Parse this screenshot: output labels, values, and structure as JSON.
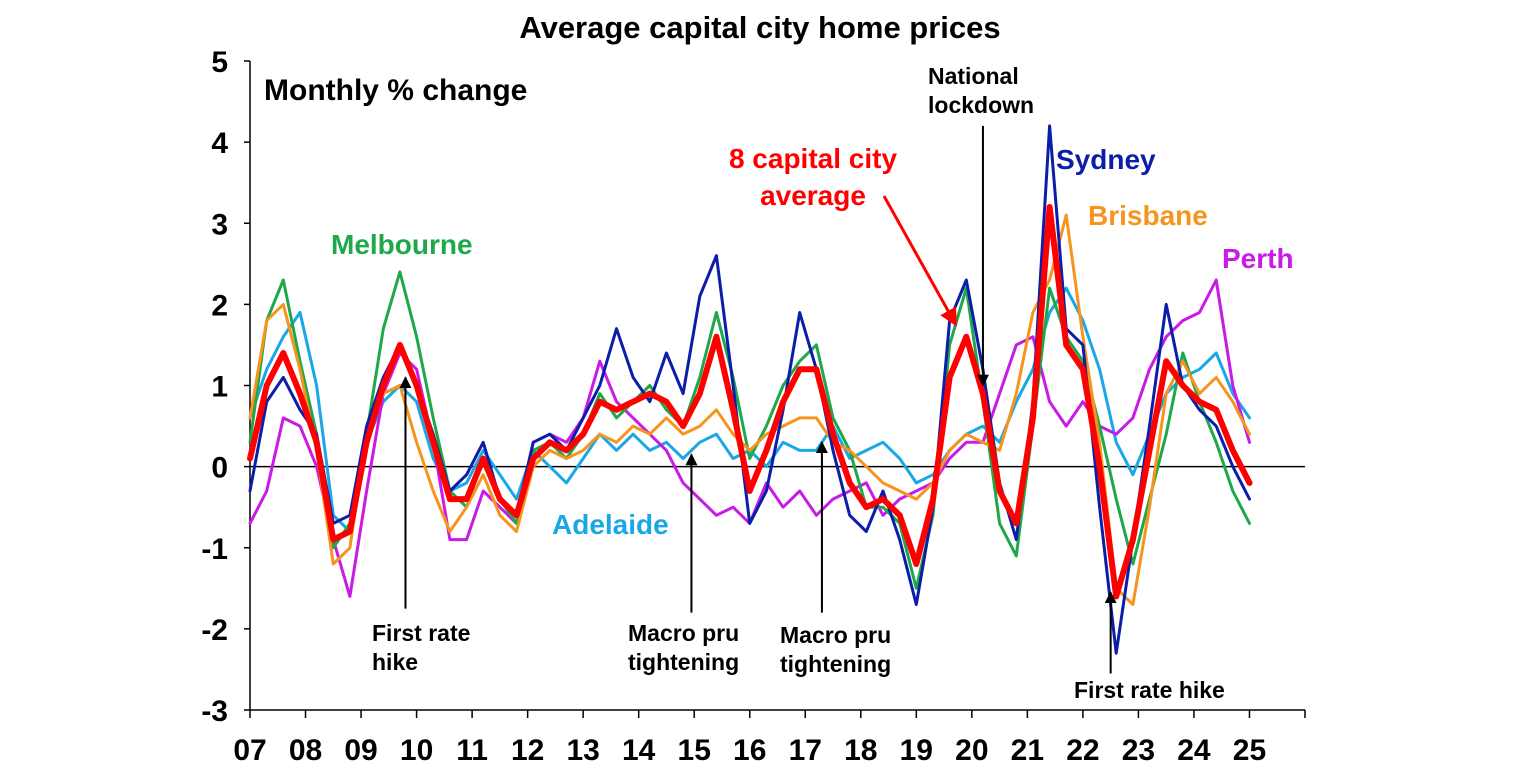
{
  "chart_data": {
    "type": "line",
    "title": "Average capital city home prices",
    "subtitle": "Monthly % change",
    "xlabel": "",
    "ylabel": "",
    "ylim": [
      -3,
      5
    ],
    "xlim": [
      2007,
      2026
    ],
    "yticks": [
      "5",
      "4",
      "3",
      "2",
      "1",
      "0",
      "-1",
      "-2",
      "-3"
    ],
    "ytick_values": [
      5,
      4,
      3,
      2,
      1,
      0,
      -1,
      -2,
      -3
    ],
    "xticks": [
      "07",
      "08",
      "09",
      "10",
      "11",
      "12",
      "13",
      "14",
      "15",
      "16",
      "17",
      "18",
      "19",
      "20",
      "21",
      "22",
      "23",
      "24",
      "25"
    ],
    "xtick_values": [
      2007,
      2008,
      2009,
      2010,
      2011,
      2012,
      2013,
      2014,
      2015,
      2016,
      2017,
      2018,
      2019,
      2020,
      2021,
      2022,
      2023,
      2024,
      2025
    ],
    "grid": false,
    "series": [
      {
        "name": "Adelaide",
        "color": "#1aa7e6",
        "width": 3,
        "x": [
          2007.0,
          2007.3,
          2007.6,
          2007.9,
          2008.2,
          2008.5,
          2008.8,
          2009.1,
          2009.4,
          2009.7,
          2010.0,
          2010.3,
          2010.6,
          2010.9,
          2011.2,
          2011.5,
          2011.8,
          2012.1,
          2012.4,
          2012.7,
          2013.0,
          2013.3,
          2013.6,
          2013.9,
          2014.2,
          2014.5,
          2014.8,
          2015.1,
          2015.4,
          2015.7,
          2016.0,
          2016.3,
          2016.6,
          2016.9,
          2017.2,
          2017.5,
          2017.8,
          2018.1,
          2018.4,
          2018.7,
          2019.0,
          2019.3,
          2019.6,
          2019.9,
          2020.2,
          2020.5,
          2020.8,
          2021.1,
          2021.4,
          2021.7,
          2022.0,
          2022.3,
          2022.6,
          2022.9,
          2023.2,
          2023.5,
          2023.8,
          2024.1,
          2024.4,
          2024.7,
          2025.0
        ],
        "y": [
          0.6,
          1.2,
          1.6,
          1.9,
          1.0,
          -0.6,
          -0.8,
          0.3,
          0.8,
          1.0,
          0.8,
          0.1,
          -0.3,
          -0.2,
          0.2,
          -0.1,
          -0.4,
          0.2,
          0.0,
          -0.2,
          0.1,
          0.4,
          0.2,
          0.4,
          0.2,
          0.3,
          0.1,
          0.3,
          0.4,
          0.1,
          0.2,
          0.0,
          0.3,
          0.2,
          0.2,
          0.5,
          0.1,
          0.2,
          0.3,
          0.1,
          -0.2,
          -0.1,
          0.2,
          0.4,
          0.5,
          0.3,
          0.8,
          1.2,
          1.9,
          2.2,
          1.8,
          1.2,
          0.3,
          -0.1,
          0.4,
          0.9,
          1.1,
          1.2,
          1.4,
          0.9,
          0.6
        ]
      },
      {
        "name": "Perth",
        "color": "#c91ae6",
        "width": 3,
        "x": [
          2007.0,
          2007.3,
          2007.6,
          2007.9,
          2008.2,
          2008.5,
          2008.8,
          2009.1,
          2009.4,
          2009.7,
          2010.0,
          2010.3,
          2010.6,
          2010.9,
          2011.2,
          2011.5,
          2011.8,
          2012.1,
          2012.4,
          2012.7,
          2013.0,
          2013.3,
          2013.6,
          2013.9,
          2014.2,
          2014.5,
          2014.8,
          2015.1,
          2015.4,
          2015.7,
          2016.0,
          2016.3,
          2016.6,
          2016.9,
          2017.2,
          2017.5,
          2017.8,
          2018.1,
          2018.4,
          2018.7,
          2019.0,
          2019.3,
          2019.6,
          2019.9,
          2020.2,
          2020.5,
          2020.8,
          2021.1,
          2021.4,
          2021.7,
          2022.0,
          2022.3,
          2022.6,
          2022.9,
          2023.2,
          2023.5,
          2023.8,
          2024.1,
          2024.4,
          2024.7,
          2025.0
        ],
        "y": [
          -0.7,
          -0.3,
          0.6,
          0.5,
          0.0,
          -0.9,
          -1.6,
          -0.3,
          0.9,
          1.4,
          1.2,
          0.3,
          -0.9,
          -0.9,
          -0.3,
          -0.5,
          -0.7,
          0.3,
          0.4,
          0.3,
          0.6,
          1.3,
          0.8,
          0.6,
          0.4,
          0.2,
          -0.2,
          -0.4,
          -0.6,
          -0.5,
          -0.7,
          -0.2,
          -0.5,
          -0.3,
          -0.6,
          -0.4,
          -0.3,
          -0.2,
          -0.6,
          -0.4,
          -0.3,
          -0.2,
          0.1,
          0.3,
          0.3,
          0.9,
          1.5,
          1.6,
          0.8,
          0.5,
          0.8,
          0.5,
          0.4,
          0.6,
          1.2,
          1.6,
          1.8,
          1.9,
          2.3,
          1.0,
          0.3
        ]
      },
      {
        "name": "Melbourne",
        "color": "#1fa84a",
        "width": 3,
        "x": [
          2007.0,
          2007.3,
          2007.6,
          2007.9,
          2008.2,
          2008.5,
          2008.8,
          2009.1,
          2009.4,
          2009.7,
          2010.0,
          2010.3,
          2010.6,
          2010.9,
          2011.2,
          2011.5,
          2011.8,
          2012.1,
          2012.4,
          2012.7,
          2013.0,
          2013.3,
          2013.6,
          2013.9,
          2014.2,
          2014.5,
          2014.8,
          2015.1,
          2015.4,
          2015.7,
          2016.0,
          2016.3,
          2016.6,
          2016.9,
          2017.2,
          2017.5,
          2017.8,
          2018.1,
          2018.4,
          2018.7,
          2019.0,
          2019.3,
          2019.6,
          2019.9,
          2020.2,
          2020.5,
          2020.8,
          2021.1,
          2021.4,
          2021.7,
          2022.0,
          2022.3,
          2022.6,
          2022.9,
          2023.2,
          2023.5,
          2023.8,
          2024.1,
          2024.4,
          2024.7,
          2025.0
        ],
        "y": [
          0.3,
          1.8,
          2.3,
          1.3,
          0.4,
          -1.0,
          -0.7,
          0.4,
          1.7,
          2.4,
          1.6,
          0.6,
          -0.3,
          -0.5,
          0.1,
          -0.4,
          -0.7,
          0.2,
          0.3,
          0.1,
          0.4,
          0.9,
          0.6,
          0.8,
          1.0,
          0.7,
          0.5,
          1.1,
          1.9,
          1.1,
          0.1,
          0.5,
          1.0,
          1.3,
          1.5,
          0.6,
          0.2,
          -0.5,
          -0.5,
          -0.7,
          -1.5,
          -0.6,
          1.5,
          2.2,
          0.8,
          -0.7,
          -1.1,
          0.5,
          2.2,
          1.6,
          1.3,
          0.5,
          -0.4,
          -1.2,
          -0.4,
          0.4,
          1.4,
          0.8,
          0.3,
          -0.3,
          -0.7
        ]
      },
      {
        "name": "Brisbane",
        "color": "#f7941d",
        "width": 3,
        "x": [
          2007.0,
          2007.3,
          2007.6,
          2007.9,
          2008.2,
          2008.5,
          2008.8,
          2009.1,
          2009.4,
          2009.7,
          2010.0,
          2010.3,
          2010.6,
          2010.9,
          2011.2,
          2011.5,
          2011.8,
          2012.1,
          2012.4,
          2012.7,
          2013.0,
          2013.3,
          2013.6,
          2013.9,
          2014.2,
          2014.5,
          2014.8,
          2015.1,
          2015.4,
          2015.7,
          2016.0,
          2016.3,
          2016.6,
          2016.9,
          2017.2,
          2017.5,
          2017.8,
          2018.1,
          2018.4,
          2018.7,
          2019.0,
          2019.3,
          2019.6,
          2019.9,
          2020.2,
          2020.5,
          2020.8,
          2021.1,
          2021.4,
          2021.7,
          2022.0,
          2022.3,
          2022.6,
          2022.9,
          2023.2,
          2023.5,
          2023.8,
          2024.1,
          2024.4,
          2024.7,
          2025.0
        ],
        "y": [
          0.6,
          1.8,
          2.0,
          1.2,
          0.2,
          -1.2,
          -1.0,
          0.4,
          0.9,
          1.0,
          0.3,
          -0.3,
          -0.8,
          -0.5,
          -0.1,
          -0.6,
          -0.8,
          0.0,
          0.2,
          0.1,
          0.2,
          0.4,
          0.3,
          0.5,
          0.4,
          0.6,
          0.4,
          0.5,
          0.7,
          0.4,
          0.2,
          0.4,
          0.5,
          0.6,
          0.6,
          0.3,
          0.2,
          0.0,
          -0.2,
          -0.3,
          -0.4,
          -0.2,
          0.2,
          0.4,
          0.3,
          0.2,
          0.9,
          1.9,
          2.3,
          3.1,
          1.6,
          0.3,
          -1.5,
          -1.7,
          -0.5,
          0.9,
          1.3,
          0.9,
          1.1,
          0.8,
          0.4
        ]
      },
      {
        "name": "Sydney",
        "color": "#0b1ea8",
        "width": 3,
        "x": [
          2007.0,
          2007.3,
          2007.6,
          2007.9,
          2008.2,
          2008.5,
          2008.8,
          2009.1,
          2009.4,
          2009.7,
          2010.0,
          2010.3,
          2010.6,
          2010.9,
          2011.2,
          2011.5,
          2011.8,
          2012.1,
          2012.4,
          2012.7,
          2013.0,
          2013.3,
          2013.6,
          2013.9,
          2014.2,
          2014.5,
          2014.8,
          2015.1,
          2015.4,
          2015.7,
          2016.0,
          2016.3,
          2016.6,
          2016.9,
          2017.2,
          2017.5,
          2017.8,
          2018.1,
          2018.4,
          2018.7,
          2019.0,
          2019.3,
          2019.6,
          2019.9,
          2020.2,
          2020.5,
          2020.8,
          2021.1,
          2021.4,
          2021.7,
          2022.0,
          2022.3,
          2022.6,
          2022.9,
          2023.2,
          2023.5,
          2023.8,
          2024.1,
          2024.4,
          2024.7,
          2025.0
        ],
        "y": [
          -0.3,
          0.8,
          1.1,
          0.7,
          0.4,
          -0.7,
          -0.6,
          0.5,
          1.1,
          1.5,
          1.0,
          0.4,
          -0.3,
          -0.1,
          0.3,
          -0.4,
          -0.6,
          0.3,
          0.4,
          0.2,
          0.6,
          1.0,
          1.7,
          1.1,
          0.8,
          1.4,
          0.9,
          2.1,
          2.6,
          1.0,
          -0.7,
          -0.3,
          0.7,
          1.9,
          1.2,
          0.2,
          -0.6,
          -0.8,
          -0.3,
          -0.9,
          -1.7,
          -0.5,
          1.8,
          2.3,
          1.2,
          -0.2,
          -0.9,
          0.8,
          4.2,
          1.7,
          1.5,
          -0.5,
          -2.3,
          -0.9,
          0.5,
          2.0,
          1.0,
          0.7,
          0.5,
          0.0,
          -0.4
        ]
      },
      {
        "name": "8 capital city average",
        "color": "#ff0000",
        "width": 6,
        "x": [
          2007.0,
          2007.3,
          2007.6,
          2007.9,
          2008.2,
          2008.5,
          2008.8,
          2009.1,
          2009.4,
          2009.7,
          2010.0,
          2010.3,
          2010.6,
          2010.9,
          2011.2,
          2011.5,
          2011.8,
          2012.1,
          2012.4,
          2012.7,
          2013.0,
          2013.3,
          2013.6,
          2013.9,
          2014.2,
          2014.5,
          2014.8,
          2015.1,
          2015.4,
          2015.7,
          2016.0,
          2016.3,
          2016.6,
          2016.9,
          2017.2,
          2017.5,
          2017.8,
          2018.1,
          2018.4,
          2018.7,
          2019.0,
          2019.3,
          2019.6,
          2019.9,
          2020.2,
          2020.5,
          2020.8,
          2021.1,
          2021.4,
          2021.7,
          2022.0,
          2022.3,
          2022.6,
          2022.9,
          2023.2,
          2023.5,
          2023.8,
          2024.1,
          2024.4,
          2024.7,
          2025.0
        ],
        "y": [
          0.1,
          1.0,
          1.4,
          0.9,
          0.3,
          -0.9,
          -0.8,
          0.3,
          1.0,
          1.5,
          1.0,
          0.3,
          -0.4,
          -0.4,
          0.1,
          -0.4,
          -0.6,
          0.1,
          0.3,
          0.2,
          0.4,
          0.8,
          0.7,
          0.8,
          0.9,
          0.8,
          0.5,
          0.9,
          1.6,
          0.7,
          -0.3,
          0.2,
          0.8,
          1.2,
          1.2,
          0.4,
          -0.2,
          -0.5,
          -0.4,
          -0.6,
          -1.2,
          -0.4,
          1.1,
          1.6,
          0.9,
          -0.3,
          -0.7,
          0.6,
          3.2,
          1.5,
          1.2,
          0.0,
          -1.6,
          -0.9,
          0.2,
          1.3,
          1.0,
          0.8,
          0.7,
          0.2,
          -0.2
        ]
      }
    ],
    "series_labels": [
      {
        "text": "Melbourne",
        "series": "Melbourne"
      },
      {
        "text": "Sydney",
        "series": "Sydney"
      },
      {
        "text": "Brisbane",
        "series": "Brisbane"
      },
      {
        "text": "Perth",
        "series": "Perth"
      },
      {
        "text": "Adelaide",
        "series": "Adelaide"
      },
      {
        "text_lines": [
          "8 capital city",
          "average"
        ],
        "series": "8 capital city average"
      }
    ],
    "annotations": [
      {
        "text_lines": [
          "First rate",
          "hike"
        ],
        "arrow_x": 2009.8,
        "arrow_y_from": -1.75,
        "arrow_y_to": 1.1
      },
      {
        "text_lines": [
          "Macro pru",
          "tightening"
        ],
        "arrow_x": 2014.95,
        "arrow_y_from": -1.8,
        "arrow_y_to": 0.15
      },
      {
        "text_lines": [
          "Macro pru",
          "tightening"
        ],
        "arrow_x": 2017.3,
        "arrow_y_from": -1.8,
        "arrow_y_to": 0.3
      },
      {
        "text_lines": [
          "National",
          "lockdown"
        ],
        "arrow_x": 2020.2,
        "arrow_y_from": 4.2,
        "arrow_y_to": 1.0
      },
      {
        "text_lines": [
          "First rate hike"
        ],
        "arrow_x": 2022.5,
        "arrow_y_from": -2.55,
        "arrow_y_to": -1.55
      }
    ]
  }
}
